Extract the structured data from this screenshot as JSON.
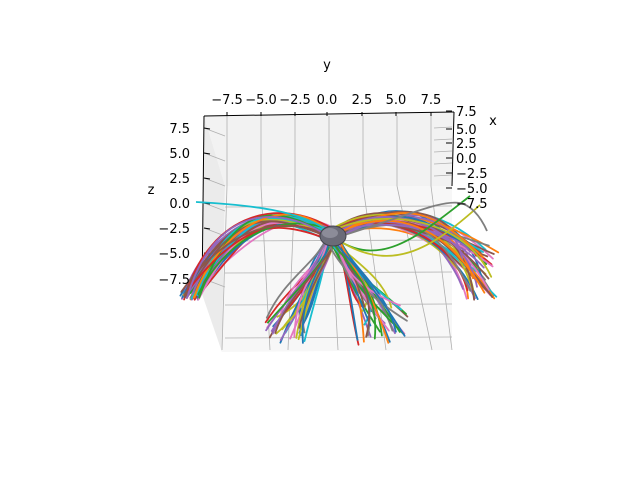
{
  "chart_data": {
    "type": "line",
    "projection": "3d",
    "axes": {
      "y": {
        "label": "y",
        "ticks": [
          "−7.5",
          "−5.0",
          "−2.5",
          "0.0",
          "2.5",
          "5.0",
          "7.5"
        ],
        "range": [
          -10,
          10
        ]
      },
      "x": {
        "label": "x",
        "ticks": [
          "7.5",
          "5.0",
          "2.5",
          "0.0",
          "−2.5",
          "−5.0",
          "−7.5"
        ],
        "range": [
          -10,
          10
        ]
      },
      "z": {
        "label": "z",
        "ticks": [
          "7.5",
          "5.0",
          "2.5",
          "0.0",
          "−2.5",
          "−5.0",
          "−7.5"
        ],
        "range": [
          -10,
          10
        ]
      }
    },
    "central_object": "sphere",
    "trajectory_groups": [
      {
        "direction": "upper-left",
        "count": 50
      },
      {
        "direction": "upper-right",
        "count": 50
      },
      {
        "direction": "lower-left",
        "count": 35
      },
      {
        "direction": "lower-right",
        "count": 35
      }
    ],
    "grid": true,
    "legend": "none",
    "colors": [
      "#1f77b4",
      "#ff7f0e",
      "#2ca02c",
      "#d62728",
      "#9467bd",
      "#8c564b",
      "#e377c2",
      "#7f7f7f",
      "#bcbd22",
      "#17becf"
    ],
    "pane_color": "#f2f2f2",
    "sphere_color": "#6b6b78"
  }
}
